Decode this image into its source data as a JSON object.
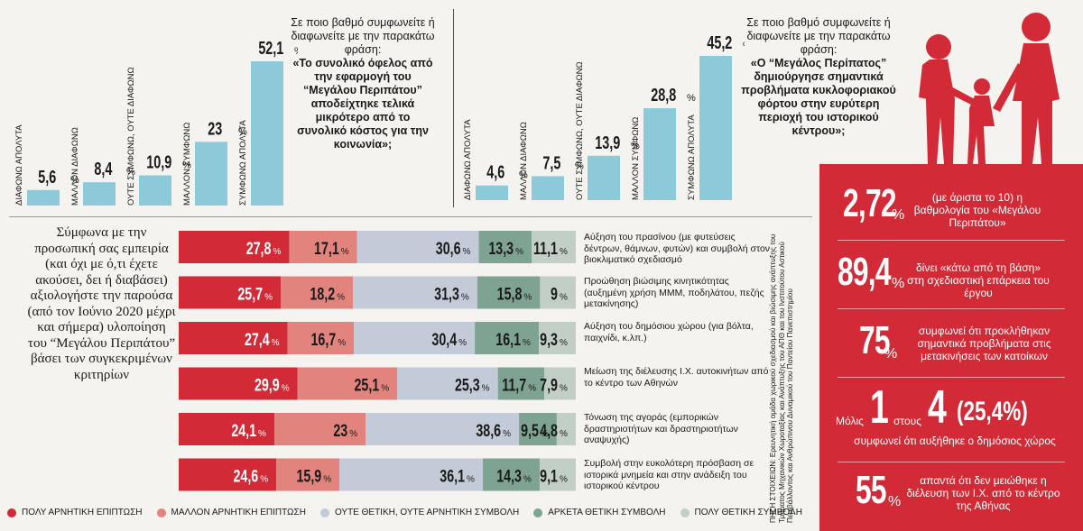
{
  "colors": {
    "very_negative": "#d22a37",
    "rather_negative": "#e2847d",
    "neutral": "#c3cad8",
    "rather_positive": "#7ea393",
    "very_positive": "#c2cfc6",
    "bar_blue": "#8ccad9",
    "panel_red": "#d22a37"
  },
  "chart_data": [
    {
      "type": "bar",
      "categories": [
        "ΔΙΑΦΩΝΩ ΑΠΟΛΥΤΑ",
        "ΜΑΛΛΟΝ ΔΙΑΦΩΝΩ",
        "ΟΥΤΕ ΣΥΜΦΩΝΩ, ΟΥΤΕ ΔΙΑΦΩΝΩ",
        "ΜΑΛΛΟΝ ΣΥΜΦΩΝΩ",
        "ΣΥΜΦΩΝΩ ΑΠΟΛΥΤΑ"
      ],
      "values": [
        5.6,
        8.4,
        10.9,
        23,
        52.1
      ],
      "value_labels": [
        "5,6",
        "8,4",
        "10,9",
        "23",
        "52,1"
      ],
      "question_intro": "Σε ποιο βαθμό συμφωνείτε ή διαφωνείτε με την παρακάτω φράση:",
      "question_bold": "«Το συνολικό όφελος από την εφαρμογή του “Μεγάλου Περιπάτου” αποδείχτηκε τελικά μικρότερο από το συνολικό κόστος για την κοινωνία»;"
    },
    {
      "type": "bar",
      "categories": [
        "ΔΙΑΦΩΝΩ ΑΠΟΛΥΤΑ",
        "ΜΑΛΛΟΝ ΔΙΑΦΩΝΩ",
        "ΟΥΤΕ ΣΥΜΦΩΝΩ, ΟΥΤΕ ΔΙΑΦΩΝΩ",
        "ΜΑΛΛΟΝ ΣΥΜΦΩΝΩ",
        "ΣΥΜΦΩΝΩ ΑΠΟΛΥΤΑ"
      ],
      "values": [
        4.6,
        7.5,
        13.9,
        28.8,
        45.2
      ],
      "value_labels": [
        "4,6",
        "7,5",
        "13,9",
        "28,8",
        "45,2"
      ],
      "question_intro": "Σε ποιο βαθμό συμφωνείτε ή διαφωνείτε με την παρακάτω φράση:",
      "question_bold": "«Ο “Μεγάλος Περίπατος” δημιούργησε σημαντικά προβλήματα κυκλοφοριακού φόρτου στην ευρύτερη περιοχή του ιστορικού κέντρου»;"
    },
    {
      "type": "stacked-bar",
      "intro": "Σύμφωνα με την προσωπική σας εμπειρία (και όχι με ό,τι έχετε ακούσει, δει ή διαβάσει) αξιολογήστε την παρούσα (από τον Ιούνιο 2020 μέχρι και σήμερα) υλοποίηση του “Μεγάλου Περιπάτου” βάσει των συγκεκριμένων κριτηρίων",
      "series": [
        {
          "name": "ΠΟΛΥ ΑΡΝΗΤΙΚΗ ΕΠΙΠΤΩΣΗ"
        },
        {
          "name": "ΜΑΛΛΟΝ ΑΡΝΗΤΙΚΗ ΕΠΙΠΤΩΣΗ"
        },
        {
          "name": "ΟΥΤΕ ΘΕΤΙΚΗ, ΟΥΤΕ ΑΡΝΗΤΙΚΗ ΣΥΜΒΟΛΗ"
        },
        {
          "name": "ΑΡΚΕΤΑ ΘΕΤΙΚΗ ΣΥΜΒΟΛΗ"
        },
        {
          "name": "ΠΟΛΥ ΘΕΤΙΚΗ ΣΥΜΒΟΛΗ"
        }
      ],
      "rows": [
        {
          "label": "Αύξηση του πρασίνου (με φυτεύσεις δέντρων, θάμνων, φυτών) και συμβολή στον βιοκλιματικό σχεδιασμό",
          "values": [
            27.8,
            17.1,
            30.6,
            13.3,
            11.1
          ],
          "value_labels": [
            "27,8",
            "17,1",
            "30,6",
            "13,3",
            "11,1"
          ]
        },
        {
          "label": "Προώθηση βιώσιμης κινητικότητας (αυξημένη χρήση ΜΜΜ, ποδηλάτου, πεζής μετακίνησης)",
          "values": [
            25.7,
            18.2,
            31.3,
            15.8,
            9
          ],
          "value_labels": [
            "25,7",
            "18,2",
            "31,3",
            "15,8",
            "9"
          ]
        },
        {
          "label": "Αύξηση του δημόσιου χώρου (για βόλτα, παιχνίδι, κ.λπ.)",
          "values": [
            27.4,
            16.7,
            30.4,
            16.1,
            9.3
          ],
          "value_labels": [
            "27,4",
            "16,7",
            "30,4",
            "16,1",
            "9,3"
          ]
        },
        {
          "label": "Μείωση της διέλευσης Ι.Χ. αυτοκινήτων από το κέντρο των Αθηνών",
          "values": [
            29.9,
            25.1,
            25.3,
            11.7,
            7.9
          ],
          "value_labels": [
            "29,9",
            "25,1",
            "25,3",
            "11,7",
            "7,9"
          ]
        },
        {
          "label": "Τόνωση της αγοράς (εμπορικών δραστηριοτήτων και δραστηριοτήτων αναψυχής)",
          "values": [
            24.1,
            23,
            38.6,
            9.5,
            4.8
          ],
          "value_labels": [
            "24,1",
            "23",
            "38,6",
            "9,5",
            "4,8"
          ]
        },
        {
          "label": "Συμβολή στην ευκολότερη πρόσβαση σε ιστορικά μνημεία και στην ανάδειξη του ιστορικού κέντρου",
          "values": [
            24.6,
            15.9,
            36.1,
            14.3,
            9.1
          ],
          "value_labels": [
            "24,6",
            "15,9",
            "36,1",
            "14,3",
            "9,1"
          ]
        }
      ]
    }
  ],
  "source_text": "ΠΗΓΗ ΣΤΟΙΧΕΙΩΝ: Ερευνητική ομάδα χωρικού σχεδιασμού και βιώσιμης ανάπτυξης του Τμήματος Μηχανικών Χωροταξίας και Ανάπτυξης του ΑΠΘ και του Ινστιτούτου Αστικού Περιβάλλοντος και Ανθρώπινου Δυναμικού του Παντείου Πανεπιστημίου",
  "stats": [
    {
      "number": "2,72",
      "suffix": "%",
      "text": "(με άριστα το 10) η βαθμολογία του «Μεγάλου Περιπάτου»"
    },
    {
      "number": "89,4",
      "suffix": "%",
      "text": "δίνει «κάτω από τη βάση» στη σχεδιαστική επάρκεια του έργου"
    },
    {
      "number": "75",
      "suffix": "%",
      "text": "συμφωνεί ότι προκλήθηκαν σημαντικά προβλήματα στις μετακινήσεις των κατοίκων"
    },
    {
      "prefix": "Μόλις",
      "number": "1",
      "middle": "στους",
      "number2": "4",
      "paren": "(25,4%)",
      "text": "συμφωνεί ότι αυξήθηκε ο δημόσιος χώρος"
    },
    {
      "number": "55",
      "suffix": "%",
      "text": "απαντά ότι δεν μειώθηκε η διέλευση των Ι.Χ. από το κέντρο της Αθήνας"
    }
  ]
}
